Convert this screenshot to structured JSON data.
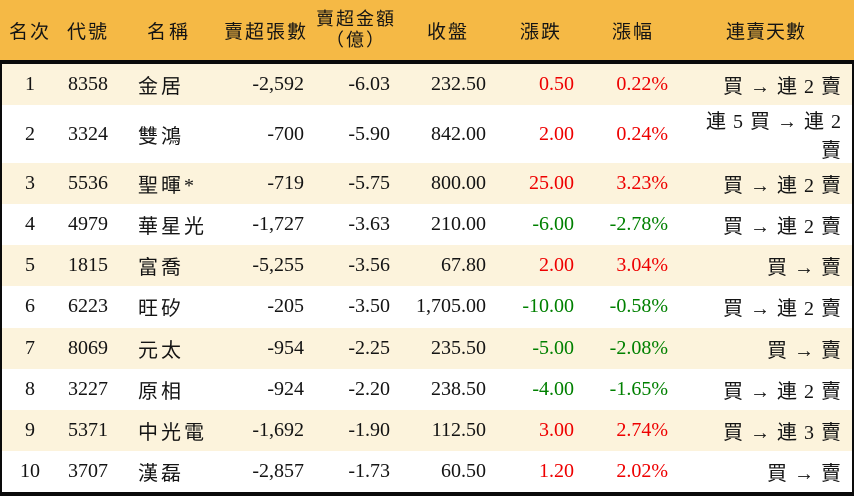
{
  "colors": {
    "header_bg": "#F5B945",
    "row_alt_bg": "#FCF3DC",
    "up_red": "#EE0000",
    "down_green": "#008000"
  },
  "chart_data": {
    "type": "table",
    "title": "",
    "columns": {
      "rank": "名次",
      "code": "代號",
      "name": "名稱",
      "sell_volume": "賣超張數",
      "sell_amount": "賣超金額\n（億）",
      "close": "收盤",
      "change": "漲跌",
      "change_pct": "漲幅",
      "streak": "連賣天數"
    },
    "rows": [
      {
        "rank": "1",
        "code": "8358",
        "name": "金居",
        "sell_volume": "-2,592",
        "sell_amount": "-6.03",
        "close": "232.50",
        "change": "0.50",
        "change_pct": "0.22%",
        "direction": "up",
        "streak": "買 → 連 2 賣"
      },
      {
        "rank": "2",
        "code": "3324",
        "name": "雙鴻",
        "sell_volume": "-700",
        "sell_amount": "-5.90",
        "close": "842.00",
        "change": "2.00",
        "change_pct": "0.24%",
        "direction": "up",
        "streak": "連 5 買 → 連 2 賣"
      },
      {
        "rank": "3",
        "code": "5536",
        "name": "聖暉*",
        "sell_volume": "-719",
        "sell_amount": "-5.75",
        "close": "800.00",
        "change": "25.00",
        "change_pct": "3.23%",
        "direction": "up",
        "streak": "買 → 連 2 賣"
      },
      {
        "rank": "4",
        "code": "4979",
        "name": "華星光",
        "sell_volume": "-1,727",
        "sell_amount": "-3.63",
        "close": "210.00",
        "change": "-6.00",
        "change_pct": "-2.78%",
        "direction": "down",
        "streak": "買 → 連 2 賣"
      },
      {
        "rank": "5",
        "code": "1815",
        "name": "富喬",
        "sell_volume": "-5,255",
        "sell_amount": "-3.56",
        "close": "67.80",
        "change": "2.00",
        "change_pct": "3.04%",
        "direction": "up",
        "streak": "買 → 賣"
      },
      {
        "rank": "6",
        "code": "6223",
        "name": "旺矽",
        "sell_volume": "-205",
        "sell_amount": "-3.50",
        "close": "1,705.00",
        "change": "-10.00",
        "change_pct": "-0.58%",
        "direction": "down",
        "streak": "買 → 連 2 賣"
      },
      {
        "rank": "7",
        "code": "8069",
        "name": "元太",
        "sell_volume": "-954",
        "sell_amount": "-2.25",
        "close": "235.50",
        "change": "-5.00",
        "change_pct": "-2.08%",
        "direction": "down",
        "streak": "買 → 賣"
      },
      {
        "rank": "8",
        "code": "3227",
        "name": "原相",
        "sell_volume": "-924",
        "sell_amount": "-2.20",
        "close": "238.50",
        "change": "-4.00",
        "change_pct": "-1.65%",
        "direction": "down",
        "streak": "買 → 連 2 賣"
      },
      {
        "rank": "9",
        "code": "5371",
        "name": "中光電",
        "sell_volume": "-1,692",
        "sell_amount": "-1.90",
        "close": "112.50",
        "change": "3.00",
        "change_pct": "2.74%",
        "direction": "up",
        "streak": "買 → 連 3 賣"
      },
      {
        "rank": "10",
        "code": "3707",
        "name": "漢磊",
        "sell_volume": "-2,857",
        "sell_amount": "-1.73",
        "close": "60.50",
        "change": "1.20",
        "change_pct": "2.02%",
        "direction": "up",
        "streak": "買 → 賣"
      }
    ]
  }
}
